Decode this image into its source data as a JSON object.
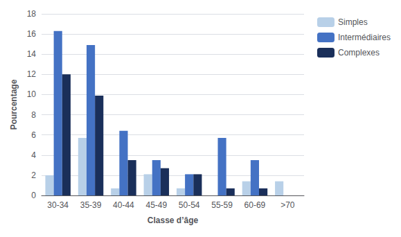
{
  "chart_data": {
    "type": "bar",
    "xlabel": "Classe d’âge",
    "ylabel": "Pourcentage",
    "categories": [
      "30-34",
      "35-39",
      "40-44",
      "45-49",
      "50-54",
      "55-59",
      "60-69",
      ">70"
    ],
    "series": [
      {
        "name": "Simples",
        "color": "#b8d0e8",
        "values": [
          2.0,
          5.7,
          0.7,
          2.1,
          0.7,
          0.0,
          1.4,
          1.4
        ]
      },
      {
        "name": "Intermédiaires",
        "color": "#4472c4",
        "values": [
          16.3,
          14.9,
          6.4,
          3.5,
          2.1,
          5.7,
          3.5,
          0.0
        ]
      },
      {
        "name": "Complexes",
        "color": "#1a2f5a",
        "values": [
          12.0,
          9.9,
          3.5,
          2.7,
          2.1,
          0.7,
          0.7,
          0.0
        ]
      }
    ],
    "ylim": [
      0,
      18
    ],
    "yticks": [
      0,
      2,
      4,
      6,
      8,
      10,
      12,
      14,
      16,
      18
    ],
    "grid": true,
    "legend": "upper right"
  }
}
